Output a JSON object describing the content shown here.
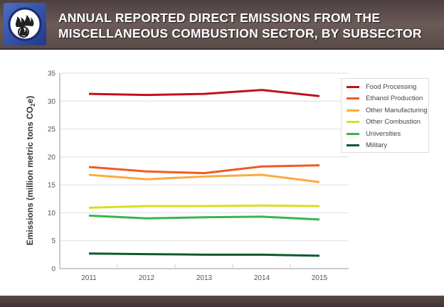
{
  "header": {
    "title_line1": "ANNUAL REPORTED DIRECT EMISSIONS FROM THE",
    "title_line2": "MISCELLANEOUS COMBUSTION SECTOR, BY SUBSECTOR",
    "logo_icon": "flame-icon"
  },
  "chart_data": {
    "type": "line",
    "title": "ANNUAL REPORTED DIRECT EMISSIONS FROM THE MISCELLANEOUS COMBUSTION SECTOR, BY SUBSECTOR",
    "xlabel": "",
    "ylabel": "Emissions (million metric tons CO2e)",
    "ylabel_parts": {
      "pre": "Emissions (million metric tons CO",
      "sub": "2",
      "post": "e)"
    },
    "ylim": [
      0,
      35
    ],
    "yticks": [
      "0",
      "5",
      "10",
      "15",
      "20",
      "25",
      "30",
      "35"
    ],
    "categories": [
      "2011",
      "2012",
      "2013",
      "2014",
      "2015"
    ],
    "grid": true,
    "legend_position": "top-right",
    "series": [
      {
        "name": "Food Processing",
        "color": "#c0111f",
        "values": [
          31.3,
          31.1,
          31.3,
          32.0,
          30.9
        ]
      },
      {
        "name": "Ethanol Production",
        "color": "#f05a22",
        "values": [
          18.2,
          17.4,
          17.1,
          18.3,
          18.5
        ]
      },
      {
        "name": "Other Manufacturing",
        "color": "#fbab3e",
        "values": [
          16.8,
          16.0,
          16.5,
          16.8,
          15.5
        ]
      },
      {
        "name": "Other Combustion",
        "color": "#d7df23",
        "values": [
          10.9,
          11.2,
          11.2,
          11.3,
          11.2
        ]
      },
      {
        "name": "Universities",
        "color": "#39b54a",
        "values": [
          9.5,
          9.0,
          9.2,
          9.3,
          8.8
        ]
      },
      {
        "name": "Military",
        "color": "#0b5a2a",
        "values": [
          2.7,
          2.6,
          2.5,
          2.5,
          2.3
        ]
      }
    ]
  }
}
